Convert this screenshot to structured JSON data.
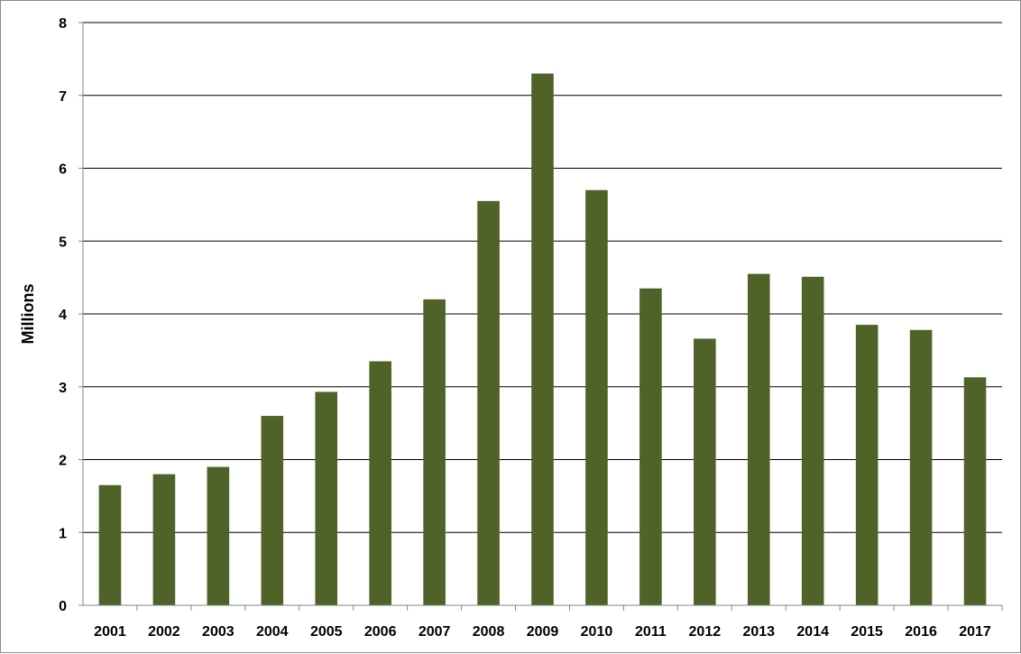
{
  "chart_data": {
    "type": "bar",
    "title": "",
    "xlabel": "",
    "ylabel": "Millions",
    "categories": [
      "2001",
      "2002",
      "2003",
      "2004",
      "2005",
      "2006",
      "2007",
      "2008",
      "2009",
      "2010",
      "2011",
      "2012",
      "2013",
      "2014",
      "2015",
      "2016",
      "2017"
    ],
    "values": [
      1.65,
      1.8,
      1.9,
      2.6,
      2.93,
      3.35,
      4.2,
      5.55,
      7.3,
      5.7,
      4.35,
      3.66,
      4.55,
      4.51,
      3.85,
      3.78,
      3.13
    ],
    "ylim": [
      0,
      8
    ],
    "yticks": [
      "0",
      "1",
      "2",
      "3",
      "4",
      "5",
      "6",
      "7",
      "8"
    ],
    "grid": true,
    "legend": "none",
    "bar_color": "#4f6228"
  }
}
